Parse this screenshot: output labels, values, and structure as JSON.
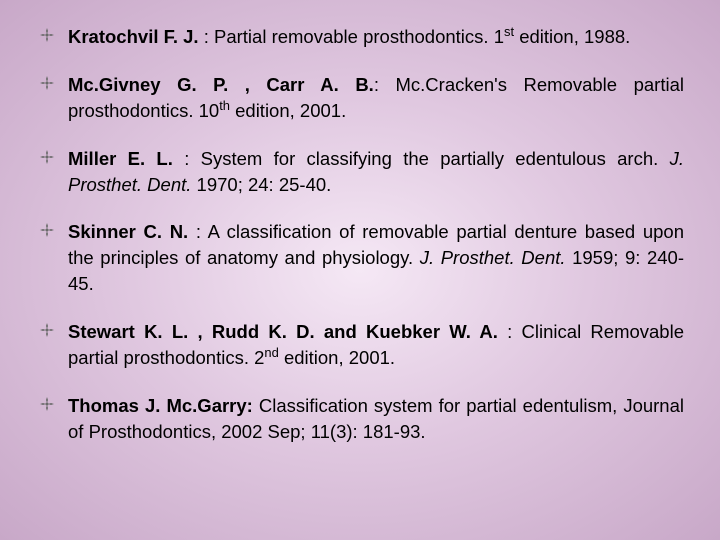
{
  "references": [
    {
      "author": "Kratochvil F. J.",
      "rest": " : Partial removable prosthodontics. 1<sup>st</sup> edition, 1988."
    },
    {
      "author": "Mc.Givney G. P. , Carr A. B.",
      "rest": ": Mc.Cracken's Removable partial prosthodontics. 10<sup>th</sup> edition, 2001."
    },
    {
      "author": "Miller E. L.",
      "rest": " : System for classifying the partially edentulous arch. <span class=\"italic\">J. Prosthet. Dent.</span> 1970; 24: 25-40."
    },
    {
      "author": "Skinner C. N.",
      "rest": " : A classification of removable partial denture based upon the principles of anatomy and physiology. <span class=\"italic\">J. Prosthet. Dent.</span> 1959; 9: 240-45."
    },
    {
      "author": "Stewart K. L. , Rudd K. D. and Kuebker W. A.",
      "rest": " : Clinical Removable partial prosthodontics. 2<sup>nd</sup> edition, 2001."
    },
    {
      "author": "Thomas J. Mc.Garry:",
      "rest": " Classification system for partial edentulism, Journal of Prosthodontics, 2002 Sep; 11(3): 181-93."
    }
  ],
  "bullet_color": "#6a6a6a"
}
